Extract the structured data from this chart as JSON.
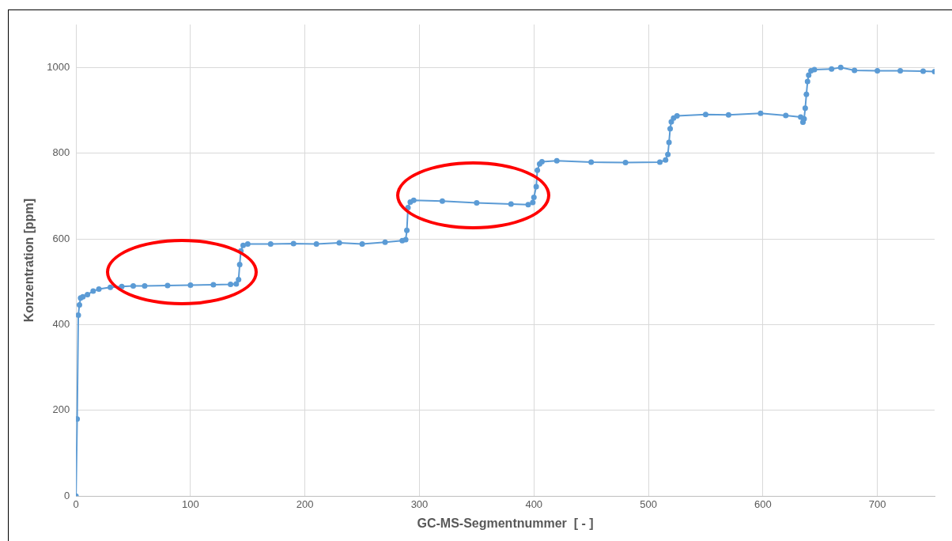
{
  "chart_data": {
    "type": "line",
    "xlabel": "GC-MS-Segmentnummer  [ - ]",
    "ylabel": "Konzentration [ppm]",
    "xlim": [
      0,
      750
    ],
    "xticks": [
      0,
      100,
      200,
      300,
      400,
      500,
      600,
      700
    ],
    "ylim": [
      0,
      1100
    ],
    "yticks": [
      0,
      200,
      400,
      600,
      800,
      1000
    ],
    "grid": true,
    "marker": "circle",
    "line_style": "solid",
    "series": [
      {
        "color": "#5b9bd5",
        "x": [
          0,
          1,
          2,
          3,
          4,
          6,
          10,
          15,
          20,
          30,
          40,
          50,
          60,
          80,
          100,
          120,
          135,
          140,
          142,
          143,
          144,
          146,
          150,
          170,
          190,
          210,
          230,
          250,
          270,
          285,
          288,
          289,
          290,
          292,
          295,
          320,
          350,
          380,
          395,
          399,
          400,
          402,
          403,
          405,
          407,
          420,
          450,
          480,
          510,
          515,
          517,
          518,
          519,
          520,
          522,
          525,
          550,
          570,
          598,
          620,
          633,
          635,
          636,
          637,
          638,
          639,
          640,
          642,
          645,
          660,
          668,
          680,
          700,
          720,
          740,
          750
        ],
        "values": [
          0,
          180,
          422,
          446,
          462,
          465,
          470,
          478,
          483,
          487,
          489,
          490,
          490,
          491,
          492,
          493,
          494,
          495,
          505,
          540,
          572,
          585,
          588,
          588,
          589,
          588,
          591,
          588,
          592,
          596,
          598,
          620,
          673,
          686,
          690,
          688,
          684,
          681,
          680,
          685,
          697,
          722,
          760,
          775,
          780,
          782,
          779,
          778,
          779,
          784,
          797,
          825,
          857,
          873,
          882,
          887,
          890,
          889,
          893,
          888,
          884,
          872,
          880,
          905,
          937,
          967,
          982,
          992,
          995,
          996,
          1000,
          993,
          992,
          992,
          991,
          990
        ]
      }
    ]
  }
}
